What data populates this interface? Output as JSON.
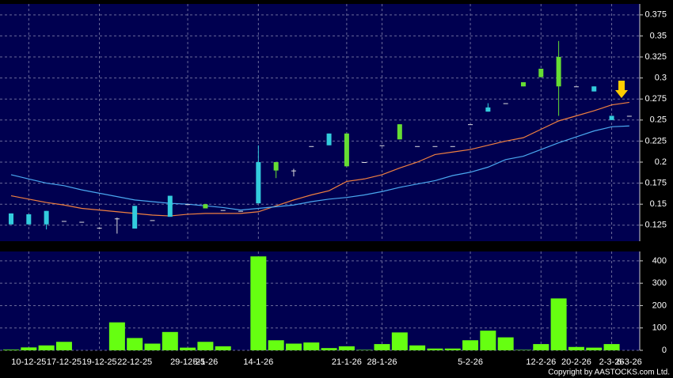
{
  "chart_data": [
    {
      "type": "candlestick",
      "categories": [
        null,
        "10-12-25",
        null,
        "17-12-25",
        null,
        "19-12-25",
        null,
        "22-12-25",
        null,
        null,
        "29-12-25",
        "5-1-26",
        null,
        null,
        "14-1-26",
        null,
        null,
        null,
        null,
        "21-1-26",
        null,
        "28-1-26",
        null,
        null,
        null,
        null,
        "5-2-26",
        null,
        null,
        null,
        "12-2-26",
        null,
        "20-2-26",
        null,
        "2-3-26",
        "6-3-26"
      ],
      "open": [
        0.139,
        0.138,
        0.142,
        0.13,
        0.129,
        0.122,
        0.133,
        0.148,
        0.131,
        0.16,
        0.15,
        0.145,
        0.143,
        0.142,
        0.2,
        0.19,
        0.19,
        0.219,
        0.234,
        0.195,
        0.2,
        0.22,
        0.227,
        0.219,
        0.219,
        0.219,
        0.245,
        0.265,
        0.27,
        0.29,
        0.301,
        0.29,
        0.29,
        0.29,
        0.255,
        0.255
      ],
      "high": [
        0.139,
        0.138,
        0.142,
        0.13,
        0.129,
        0.122,
        0.134,
        0.148,
        0.131,
        0.16,
        0.15,
        0.15,
        0.143,
        0.142,
        0.22,
        0.2,
        0.192,
        0.219,
        0.234,
        0.234,
        0.2,
        0.22,
        0.245,
        0.219,
        0.219,
        0.219,
        0.245,
        0.27,
        0.27,
        0.295,
        0.311,
        0.344,
        0.29,
        0.29,
        0.255,
        0.255
      ],
      "low": [
        0.126,
        0.126,
        0.12,
        0.13,
        0.129,
        0.122,
        0.115,
        0.121,
        0.131,
        0.135,
        0.15,
        0.145,
        0.143,
        0.142,
        0.151,
        0.181,
        0.183,
        0.219,
        0.22,
        0.195,
        0.2,
        0.22,
        0.227,
        0.219,
        0.219,
        0.219,
        0.245,
        0.26,
        0.27,
        0.29,
        0.301,
        0.255,
        0.29,
        0.284,
        0.25,
        0.255
      ],
      "close": [
        0.126,
        0.126,
        0.126,
        0.13,
        0.129,
        0.122,
        0.133,
        0.121,
        0.131,
        0.135,
        0.15,
        0.15,
        0.143,
        0.142,
        0.151,
        0.2,
        0.19,
        0.219,
        0.22,
        0.234,
        0.2,
        0.22,
        0.245,
        0.219,
        0.219,
        0.219,
        0.245,
        0.26,
        0.27,
        0.295,
        0.311,
        0.325,
        0.29,
        0.284,
        0.25,
        0.255
      ],
      "up_color": "#66dd33",
      "down_color": "#33ccdd",
      "flat_color": "#dddddd",
      "series": [
        {
          "color": "#f08040",
          "values": [
            0.16,
            0.156,
            0.152,
            0.149,
            0.145,
            0.143,
            0.141,
            0.139,
            0.137,
            0.136,
            0.138,
            0.139,
            0.139,
            0.139,
            0.141,
            0.148,
            0.155,
            0.161,
            0.166,
            0.177,
            0.18,
            0.185,
            0.193,
            0.2,
            0.209,
            0.212,
            0.215,
            0.22,
            0.225,
            0.229,
            0.239,
            0.249,
            0.255,
            0.261,
            0.268,
            0.271
          ]
        },
        {
          "color": "#4aa8f0",
          "values": [
            0.185,
            0.18,
            0.175,
            0.172,
            0.167,
            0.163,
            0.159,
            0.155,
            0.153,
            0.151,
            0.15,
            0.148,
            0.146,
            0.143,
            0.145,
            0.147,
            0.149,
            0.153,
            0.156,
            0.158,
            0.161,
            0.165,
            0.17,
            0.174,
            0.178,
            0.184,
            0.188,
            0.194,
            0.203,
            0.207,
            0.215,
            0.223,
            0.23,
            0.237,
            0.242,
            0.243
          ]
        }
      ],
      "ylim": [
        0.106,
        0.388
      ],
      "yticks": [
        0.125,
        0.15,
        0.175,
        0.2,
        0.225,
        0.25,
        0.275,
        0.3,
        0.325,
        0.35,
        0.375
      ],
      "grid": true
    },
    {
      "type": "bar",
      "color": "#66ff11",
      "values": [
        3,
        13,
        22,
        38,
        0,
        0,
        125,
        55,
        30,
        82,
        12,
        38,
        18,
        0,
        420,
        45,
        30,
        35,
        10,
        18,
        2,
        28,
        80,
        22,
        8,
        8,
        45,
        88,
        58,
        2,
        28,
        232,
        15,
        12,
        28,
        0
      ],
      "ylim": [
        0,
        442
      ],
      "yticks": [
        0,
        100,
        200,
        300,
        400
      ],
      "grid": true
    }
  ],
  "copyright": "Copyright by AASTOCKS.com Ltd."
}
